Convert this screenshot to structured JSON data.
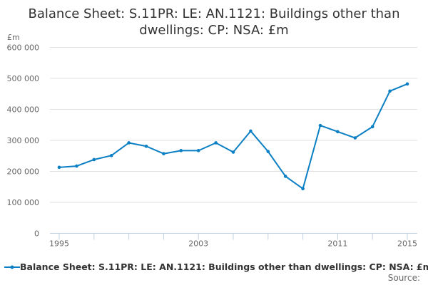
{
  "chart_data": {
    "type": "line",
    "title": "Balance Sheet: S.11PR: LE: AN.1121: Buildings other than dwellings: CP: NSA: £m",
    "ylabel": "£m",
    "xlabel": "",
    "ylim": [
      0,
      600000
    ],
    "yticks": [
      0,
      100000,
      200000,
      300000,
      400000,
      500000,
      600000
    ],
    "ytick_labels": [
      "0",
      "100 000",
      "200 000",
      "300 000",
      "400 000",
      "500 000",
      "600 000"
    ],
    "xtick_labels": [
      "1995",
      "2003",
      "2011",
      "2015"
    ],
    "x": [
      1995,
      1996,
      1997,
      1998,
      1999,
      2000,
      2001,
      2002,
      2003,
      2004,
      2005,
      2006,
      2007,
      2008,
      2009,
      2010,
      2011,
      2012,
      2013,
      2014,
      2015
    ],
    "series": [
      {
        "name": "Balance Sheet: S.11PR: LE: AN.1121: Buildings other than dwellings: CP: NSA: £m",
        "color": "#0b7fc4",
        "values": [
          213000,
          217000,
          238000,
          251000,
          292000,
          281000,
          257000,
          267000,
          267000,
          292000,
          262000,
          330000,
          264000,
          184000,
          144000,
          348000,
          328000,
          308000,
          344000,
          459000,
          482000
        ]
      }
    ],
    "grid": true,
    "legend_position": "bottom"
  },
  "source_label": "Source:"
}
